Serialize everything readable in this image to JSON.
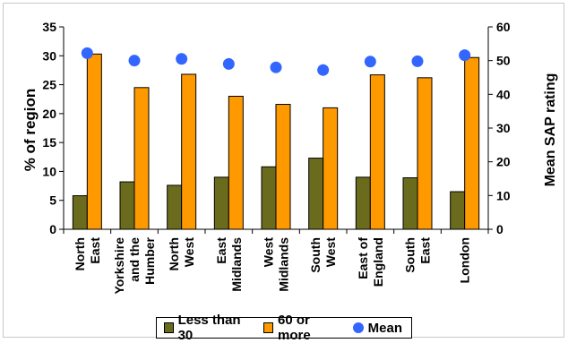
{
  "chart_data": {
    "type": "bar",
    "categories": [
      [
        "North",
        "East"
      ],
      [
        "Yorkshire",
        "and the",
        "Humber"
      ],
      [
        "North",
        "West"
      ],
      [
        "East",
        "Midlands"
      ],
      [
        "West",
        "Midlands"
      ],
      [
        "South",
        "West"
      ],
      [
        "East of",
        "England"
      ],
      [
        "South",
        "East"
      ],
      [
        "London"
      ]
    ],
    "series": [
      {
        "name": "Less than 30",
        "axis": "left",
        "type": "bar",
        "color": "#6b6b1e",
        "values": [
          5.8,
          8.2,
          7.6,
          9.0,
          10.8,
          12.3,
          9.0,
          8.9,
          6.5
        ]
      },
      {
        "name": "60 or more",
        "axis": "left",
        "type": "bar",
        "color": "#ff9900",
        "values": [
          30.3,
          24.5,
          26.8,
          23.0,
          21.6,
          21.0,
          26.7,
          26.2,
          29.7
        ]
      },
      {
        "name": "Mean",
        "axis": "right",
        "type": "scatter",
        "color": "#3366ff",
        "values": [
          52.2,
          50.0,
          50.5,
          49.0,
          48.0,
          47.2,
          49.7,
          49.8,
          51.6
        ]
      }
    ],
    "ylabel": "% of region",
    "y2label": "Mean SAP rating",
    "ylim": [
      0,
      35
    ],
    "y2lim": [
      0,
      60
    ],
    "yticks": [
      "0",
      "5",
      "10",
      "15",
      "20",
      "25",
      "30",
      "35"
    ],
    "y2ticks": [
      "0",
      "10",
      "20",
      "30",
      "40",
      "50",
      "60"
    ],
    "grid": false,
    "legend": "bottom"
  }
}
